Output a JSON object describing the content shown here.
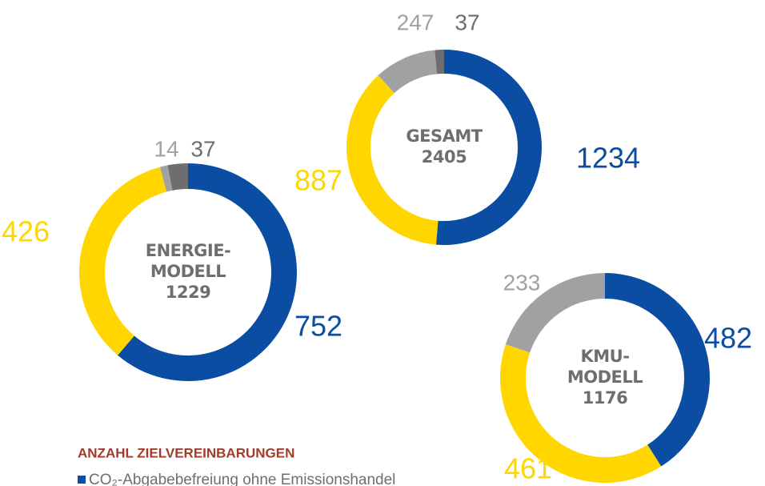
{
  "chart_data": [
    {
      "type": "pie",
      "title": [
        "GESAMT"
      ],
      "total": 2405,
      "values": [
        1234,
        887,
        247,
        37
      ],
      "colors": [
        "#0a4da2",
        "#ffd600",
        "#a0a1a3",
        "#6d6e70"
      ]
    },
    {
      "type": "pie",
      "title": [
        "ENERGIE-",
        "MODELL"
      ],
      "total": 1229,
      "values": [
        752,
        426,
        14,
        37
      ],
      "colors": [
        "#0a4da2",
        "#ffd600",
        "#a0a1a3",
        "#6d6e70"
      ]
    },
    {
      "type": "pie",
      "title": [
        "KMU-",
        "MODELL"
      ],
      "total": 1176,
      "values": [
        482,
        461,
        233
      ],
      "colors": [
        "#0a4da2",
        "#ffd600",
        "#a0a1a3"
      ]
    }
  ],
  "legend": {
    "title": "ANZAHL ZIELVEREINBARUNGEN",
    "entries": [
      {
        "name": "CO₂-Abgabebefreiung ohne Emissionshandel",
        "color": "#0a4da2"
      }
    ]
  }
}
